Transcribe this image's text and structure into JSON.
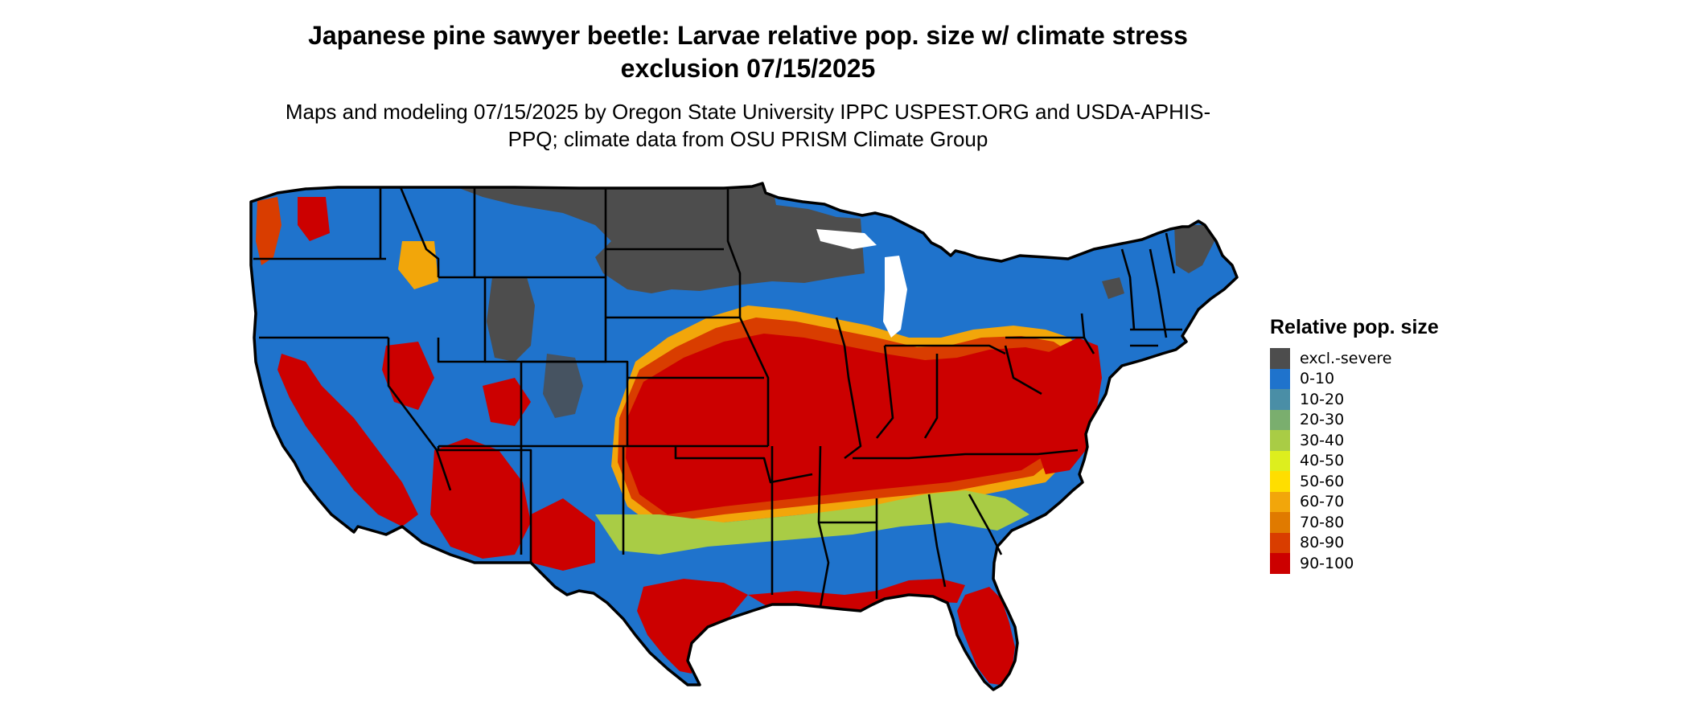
{
  "title": "Japanese pine sawyer beetle: Larvae relative pop. size w/ climate stress exclusion 07/15/2025",
  "subtitle": "Maps and modeling 07/15/2025 by Oregon State University IPPC USPEST.ORG and USDA-APHIS-PPQ; climate data from OSU PRISM Climate Group",
  "legend": {
    "title": "Relative pop. size",
    "items": [
      {
        "label": "excl.-severe",
        "color": "#4d4d4d"
      },
      {
        "label": "0-10",
        "color": "#1f73cc"
      },
      {
        "label": "10-20",
        "color": "#4a8ea6"
      },
      {
        "label": "20-30",
        "color": "#7aae6e"
      },
      {
        "label": "30-40",
        "color": "#a9cc45"
      },
      {
        "label": "40-50",
        "color": "#ddee1e"
      },
      {
        "label": "50-60",
        "color": "#ffde00"
      },
      {
        "label": "60-70",
        "color": "#f2a60a"
      },
      {
        "label": "70-80",
        "color": "#e07a00"
      },
      {
        "label": "80-90",
        "color": "#d93d00"
      },
      {
        "label": "90-100",
        "color": "#cc0000"
      }
    ]
  },
  "map": {
    "region": "contiguous-united-states",
    "state_borders_color": "#000000"
  }
}
